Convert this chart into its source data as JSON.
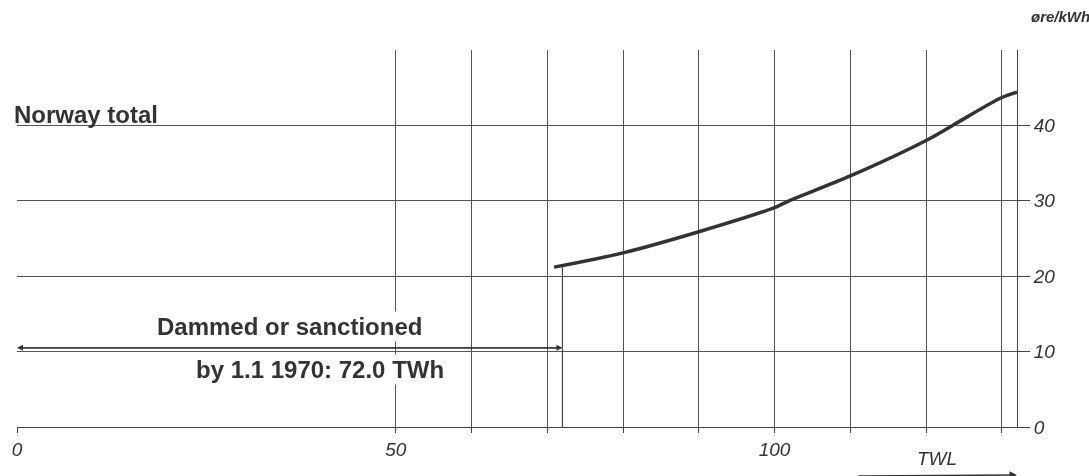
{
  "chart_data": {
    "type": "line",
    "title": "Norway total",
    "xlabel": "TWL",
    "ylabel": "øre/kWh",
    "x": [
      70.9,
      80,
      90,
      100,
      101.9,
      110,
      120,
      123.5,
      130,
      132
    ],
    "series": [
      {
        "color": "#333333",
        "values": [
          21.2,
          23.1,
          25.9,
          29.1,
          30.0,
          33.3,
          38.0,
          40.0,
          43.7,
          44.4
        ]
      }
    ],
    "xlim": [
      0,
      132
    ],
    "ylim": [
      0,
      50
    ],
    "xticks": [
      0,
      50,
      {
        "value": 60,
        "label": null
      },
      {
        "value": 70,
        "label": null
      },
      {
        "value": 80,
        "label": null
      },
      {
        "value": 90,
        "label": null
      },
      100,
      {
        "value": 110,
        "label": null
      },
      {
        "value": 120,
        "label": null
      },
      {
        "value": 130,
        "label": null
      }
    ],
    "yticks": [
      0,
      10,
      20,
      30,
      40
    ],
    "ref_lines": [
      {
        "axis": "x",
        "value": 72,
        "label": "Dammed or sanctioned\nby 1.1 1970: 72.0 TWh"
      }
    ],
    "grid": true,
    "marker": "none",
    "line_style": "solid"
  }
}
